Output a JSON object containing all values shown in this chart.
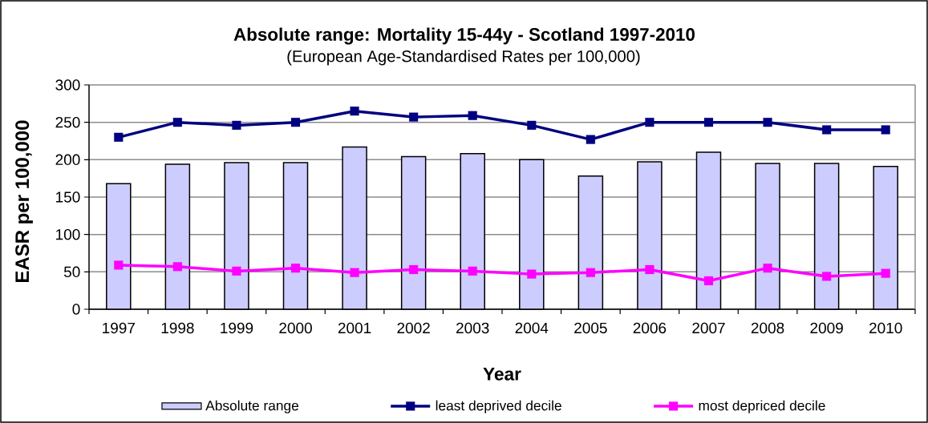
{
  "chart_data": {
    "type": "bar",
    "title": "Absolute range: Mortality 15-44y - Scotland 1997-2010",
    "subtitle": "(European Age-Standardised Rates per 100,000)",
    "xlabel": "Year",
    "ylabel": "EASR per 100,000",
    "categories": [
      "1997",
      "1998",
      "1999",
      "2000",
      "2001",
      "2002",
      "2003",
      "2004",
      "2005",
      "2006",
      "2007",
      "2008",
      "2009",
      "2010"
    ],
    "ylim": [
      0,
      300
    ],
    "yticks": [
      0,
      50,
      100,
      150,
      200,
      250,
      300
    ],
    "grid": "y",
    "legend": "bottom",
    "marker": "square",
    "series": [
      {
        "name": "Absolute range",
        "color": "#ccccff",
        "values": [
          168,
          194,
          196,
          196,
          217,
          204,
          208,
          200,
          178,
          197,
          210,
          195,
          195,
          191
        ]
      },
      {
        "name": "least deprived decile",
        "type": "line",
        "color": "#000080",
        "values": [
          230,
          250,
          246,
          250,
          265,
          257,
          259,
          246,
          227,
          250,
          250,
          250,
          240,
          240
        ]
      },
      {
        "name": "most depriced decile",
        "type": "line",
        "color": "#ff00ff",
        "values": [
          59,
          57,
          51,
          55,
          49,
          53,
          51,
          47,
          49,
          53,
          38,
          55,
          44,
          48
        ]
      }
    ]
  }
}
